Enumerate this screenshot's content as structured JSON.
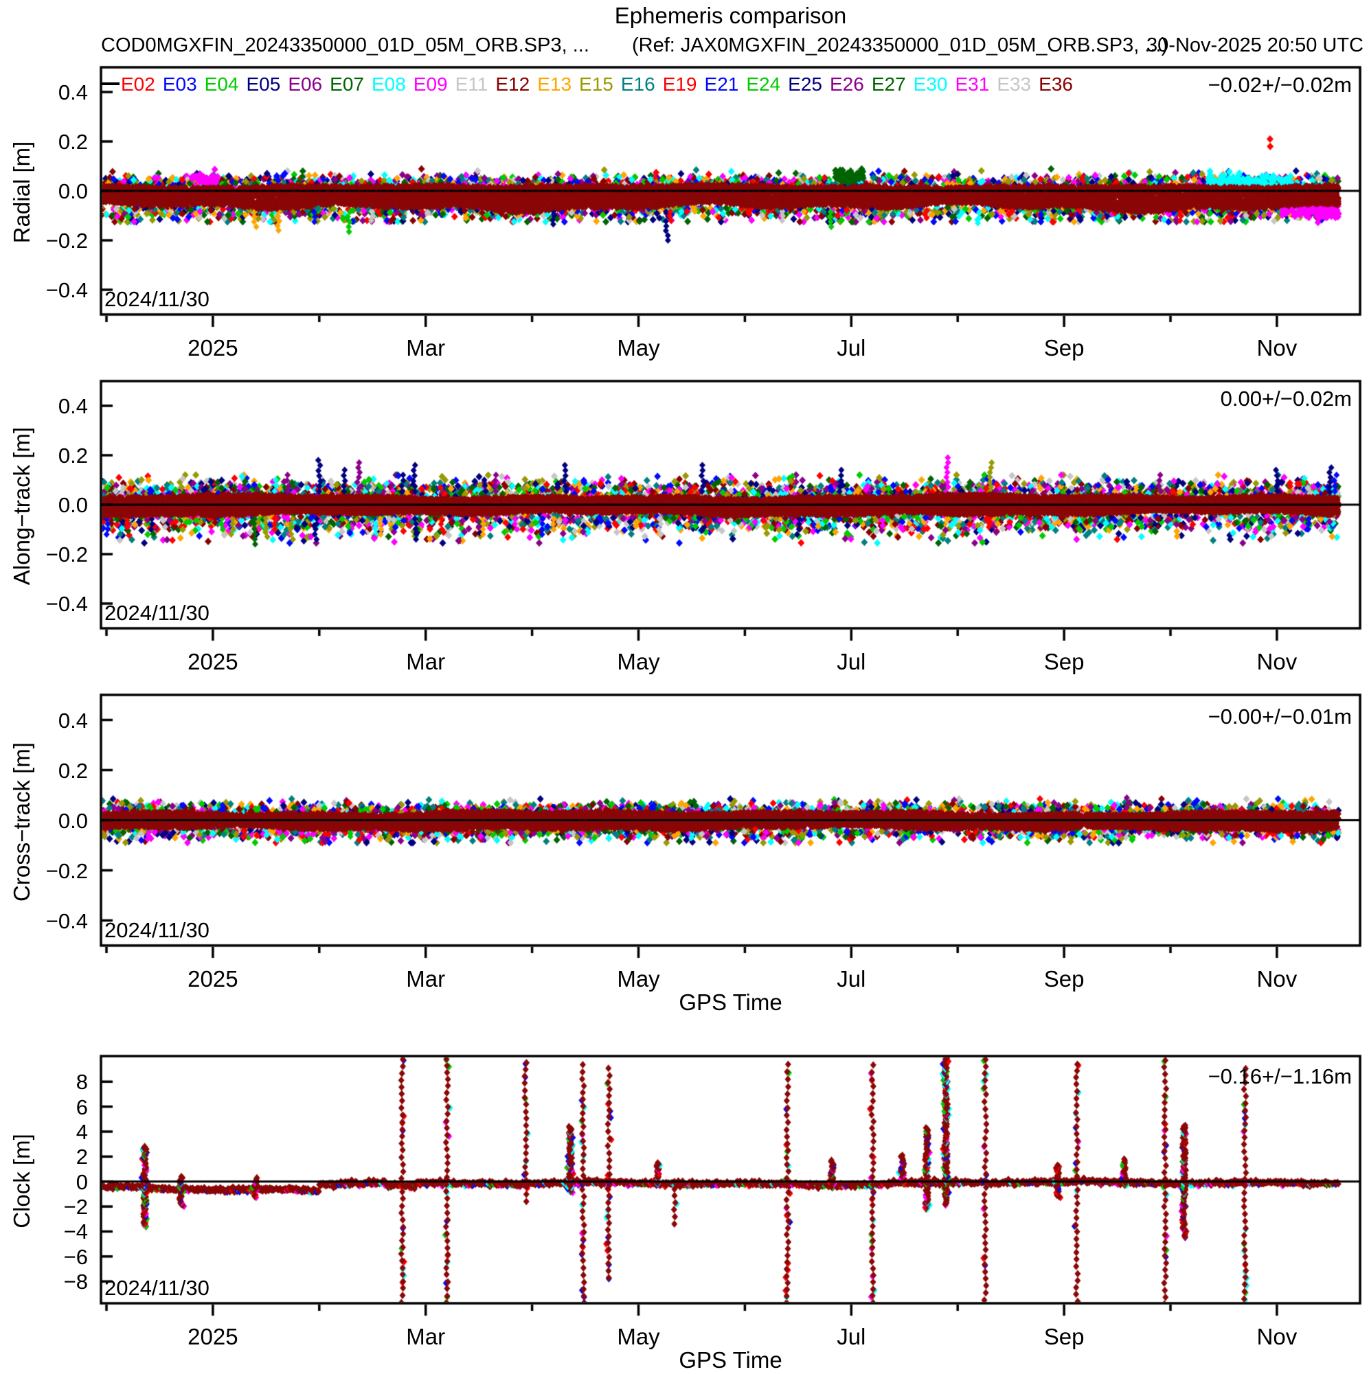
{
  "header": {
    "title": "Ephemeris comparison",
    "solution": "COD0MGXFIN_20243350000_01D_05M_ORB.SP3, ...",
    "reference": "(Ref: JAX0MGXFIN_20243350000_01D_05M_ORB.SP3, ...)",
    "timestamp": "30-Nov-2025 20:50 UTC"
  },
  "legend": {
    "satellites": [
      {
        "id": "E02",
        "color": "#ff0000"
      },
      {
        "id": "E03",
        "color": "#0008ff"
      },
      {
        "id": "E04",
        "color": "#00cc00"
      },
      {
        "id": "E05",
        "color": "#000080"
      },
      {
        "id": "E06",
        "color": "#8b008b"
      },
      {
        "id": "E07",
        "color": "#006400"
      },
      {
        "id": "E08",
        "color": "#00ffff"
      },
      {
        "id": "E09",
        "color": "#ff00ff"
      },
      {
        "id": "E11",
        "color": "#c6c6c6"
      },
      {
        "id": "E12",
        "color": "#8b0000"
      },
      {
        "id": "E13",
        "color": "#ffa500"
      },
      {
        "id": "E15",
        "color": "#999900"
      },
      {
        "id": "E16",
        "color": "#008080"
      },
      {
        "id": "E19",
        "color": "#ff0000"
      },
      {
        "id": "E21",
        "color": "#0008ff"
      },
      {
        "id": "E24",
        "color": "#00cc00"
      },
      {
        "id": "E25",
        "color": "#000080"
      },
      {
        "id": "E26",
        "color": "#8b008b"
      },
      {
        "id": "E27",
        "color": "#006400"
      },
      {
        "id": "E30",
        "color": "#00ffff"
      },
      {
        "id": "E31",
        "color": "#ff00ff"
      },
      {
        "id": "E33",
        "color": "#c6c6c6"
      },
      {
        "id": "E36",
        "color": "#8b0000"
      }
    ]
  },
  "colors": {
    "red": "#ff0000",
    "blue": "#0008ff",
    "green": "#00cc00",
    "navy": "#000080",
    "purple": "#8b008b",
    "darkgreen": "#006400",
    "cyan": "#00ffff",
    "magenta": "#ff00ff",
    "gray": "#c6c6c6",
    "darkred": "#8b0000",
    "orange": "#ffa500",
    "olive": "#999900",
    "teal": "#008080",
    "band": "#8b0707",
    "black": "#000000"
  },
  "axes": {
    "x": {
      "label": "GPS Time",
      "start_date": "2024/11/30",
      "months": [
        {
          "m": 0,
          "label": ""
        },
        {
          "m": 1,
          "label": "2025"
        },
        {
          "m": 2,
          "label": ""
        },
        {
          "m": 3,
          "label": "Mar"
        },
        {
          "m": 4,
          "label": ""
        },
        {
          "m": 5,
          "label": "May"
        },
        {
          "m": 6,
          "label": ""
        },
        {
          "m": 7,
          "label": "Jul"
        },
        {
          "m": 8,
          "label": ""
        },
        {
          "m": 9,
          "label": "Sep"
        },
        {
          "m": 10,
          "label": ""
        },
        {
          "m": 11,
          "label": "Nov"
        }
      ]
    }
  },
  "chart_data": [
    {
      "id": "radial",
      "type": "scatter",
      "ylabel": "Radial [m]",
      "units": "m",
      "ylim": [
        -0.5,
        0.5
      ],
      "yticks": [
        0.4,
        0.2,
        0.0,
        -0.2,
        -0.4
      ],
      "ytick_labels": [
        "0.4",
        "0.2",
        "0.0",
        "−0.2",
        "−0.4"
      ],
      "stat": "−0.02+/−0.02m",
      "date_label": "2024/11/30",
      "band": {
        "top": 0.02,
        "bottom": -0.065
      },
      "fringe": {
        "sd_up": 0.022,
        "sd_dn": 0.03,
        "max_up": 0.09,
        "max_dn": -0.125
      },
      "outlier_strings": [
        {
          "m": 1.4,
          "y": -0.145,
          "color": "orange"
        },
        {
          "m": 1.62,
          "y": -0.16,
          "color": "orange"
        },
        {
          "m": 1.95,
          "y": -0.125,
          "color": "blue"
        },
        {
          "m": 2.28,
          "y": -0.165,
          "color": "green"
        },
        {
          "m": 2.5,
          "y": -0.12,
          "color": "gray"
        },
        {
          "m": 4.2,
          "y": -0.135,
          "color": "navy"
        },
        {
          "m": 5.27,
          "y": -0.2,
          "color": "navy"
        },
        {
          "m": 5.3,
          "y": -0.12,
          "color": "red"
        },
        {
          "m": 6.35,
          "y": -0.12,
          "color": "gray"
        },
        {
          "m": 6.8,
          "y": -0.145,
          "color": "green"
        },
        {
          "m": 7.7,
          "y": -0.11,
          "color": "red"
        },
        {
          "m": 8.2,
          "y": -0.13,
          "color": "cyan"
        },
        {
          "m": 10.1,
          "y": -0.12,
          "color": "red"
        }
      ],
      "dots": [
        {
          "m": 10.93,
          "y": 0.21,
          "color": "red"
        },
        {
          "m": 10.93,
          "y": 0.18,
          "color": "red"
        }
      ],
      "clusters": [
        {
          "m0": 10.35,
          "m1": 11.15,
          "y": 0.035,
          "sd": 0.016,
          "color": "cyan",
          "n": 150
        },
        {
          "m0": 11.05,
          "m1": 11.58,
          "y": -0.08,
          "sd": 0.018,
          "color": "magenta",
          "n": 120
        },
        {
          "m0": 6.85,
          "m1": 7.12,
          "y": 0.06,
          "sd": 0.015,
          "color": "darkgreen",
          "n": 60
        },
        {
          "m0": 0.8,
          "m1": 1.05,
          "y": 0.05,
          "sd": 0.012,
          "color": "magenta",
          "n": 40
        }
      ]
    },
    {
      "id": "along",
      "type": "scatter",
      "ylabel": "Along−track [m]",
      "units": "m",
      "ylim": [
        -0.5,
        0.5
      ],
      "yticks": [
        0.4,
        0.2,
        0.0,
        -0.2,
        -0.4
      ],
      "ytick_labels": [
        "0.4",
        "0.2",
        "0.0",
        "−0.2",
        "−0.4"
      ],
      "stat": "0.00+/−0.02m",
      "date_label": "2024/11/30",
      "band": {
        "top": 0.032,
        "bottom": -0.036
      },
      "fringe": {
        "sd_up": 0.035,
        "sd_dn": 0.045,
        "max_up": 0.12,
        "max_dn": -0.155
      },
      "outlier_strings": [
        {
          "m": 0.01,
          "y": -0.12,
          "color": "blue"
        },
        {
          "m": 0.15,
          "y": 0.07,
          "color": "gray"
        },
        {
          "m": 0.2,
          "y": -0.09,
          "color": "red"
        },
        {
          "m": 0.42,
          "y": 0.055,
          "color": "blue"
        },
        {
          "m": 0.42,
          "y": -0.1,
          "color": "navy"
        },
        {
          "m": 0.93,
          "y": 0.065,
          "color": "navy"
        },
        {
          "m": 1.08,
          "y": -0.1,
          "color": "green"
        },
        {
          "m": 1.18,
          "y": -0.12,
          "color": "olive"
        },
        {
          "m": 1.4,
          "y": -0.16,
          "color": "darkgreen"
        },
        {
          "m": 1.5,
          "y": -0.13,
          "color": "olive"
        },
        {
          "m": 1.58,
          "y": -0.1,
          "color": "red"
        },
        {
          "m": 1.59,
          "y": 0.1,
          "color": "cyan"
        },
        {
          "m": 1.71,
          "y": 0.12,
          "color": "purple"
        },
        {
          "m": 1.74,
          "y": -0.14,
          "color": "olive"
        },
        {
          "m": 1.97,
          "y": -0.14,
          "color": "navy"
        },
        {
          "m": 2.0,
          "y": 0.18,
          "color": "navy"
        },
        {
          "m": 2.24,
          "y": 0.14,
          "color": "navy"
        },
        {
          "m": 2.37,
          "y": 0.17,
          "color": "purple"
        },
        {
          "m": 2.58,
          "y": -0.12,
          "color": "orange"
        },
        {
          "m": 2.78,
          "y": 0.12,
          "color": "navy"
        },
        {
          "m": 2.89,
          "y": 0.16,
          "color": "navy"
        },
        {
          "m": 2.91,
          "y": -0.14,
          "color": "navy"
        },
        {
          "m": 3.15,
          "y": -0.1,
          "color": "red"
        },
        {
          "m": 3.54,
          "y": -0.12,
          "color": "orange"
        },
        {
          "m": 3.56,
          "y": 0.1,
          "color": "navy"
        },
        {
          "m": 3.66,
          "y": 0.12,
          "color": "purple"
        },
        {
          "m": 3.85,
          "y": -0.1,
          "color": "magenta"
        },
        {
          "m": 4.1,
          "y": -0.12,
          "color": "blue"
        },
        {
          "m": 4.2,
          "y": -0.1,
          "color": "orange"
        },
        {
          "m": 4.31,
          "y": 0.16,
          "color": "navy"
        },
        {
          "m": 5.2,
          "y": -0.12,
          "color": "gray"
        },
        {
          "m": 5.6,
          "y": 0.16,
          "color": "navy"
        },
        {
          "m": 6.5,
          "y": -0.12,
          "color": "navy"
        },
        {
          "m": 6.9,
          "y": 0.14,
          "color": "navy"
        },
        {
          "m": 7.9,
          "y": 0.19,
          "color": "magenta"
        },
        {
          "m": 8.31,
          "y": 0.17,
          "color": "olive"
        },
        {
          "m": 8.3,
          "y": -0.09,
          "color": "red"
        },
        {
          "m": 9.9,
          "y": 0.12,
          "color": "purple"
        },
        {
          "m": 11.0,
          "y": 0.14,
          "color": "navy"
        },
        {
          "m": 11.3,
          "y": -0.1,
          "color": "blue"
        },
        {
          "m": 11.5,
          "y": 0.15,
          "color": "navy"
        },
        {
          "m": 11.55,
          "y": 0.12,
          "color": "blue"
        }
      ],
      "dots": [],
      "clusters": []
    },
    {
      "id": "cross",
      "type": "scatter",
      "ylabel": "Cross−track [m]",
      "units": "m",
      "ylim": [
        -0.5,
        0.5
      ],
      "yticks": [
        0.4,
        0.2,
        0.0,
        -0.2,
        -0.4
      ],
      "ytick_labels": [
        "0.4",
        "0.2",
        "0.0",
        "−0.2",
        "−0.4"
      ],
      "stat": "−0.00+/−0.01m",
      "date_label": "2024/11/30",
      "xlabel": "GPS Time",
      "band": {
        "top": 0.03,
        "bottom": -0.033
      },
      "fringe": {
        "sd_up": 0.02,
        "sd_dn": 0.025,
        "max_up": 0.085,
        "max_dn": -0.09
      },
      "outlier_strings": [
        {
          "m": 0.4,
          "y": -0.075,
          "color": "magenta"
        },
        {
          "m": 1.1,
          "y": 0.06,
          "color": "blue"
        },
        {
          "m": 2.3,
          "y": -0.065,
          "color": "green"
        },
        {
          "m": 5.5,
          "y": -0.07,
          "color": "cyan"
        },
        {
          "m": 7.3,
          "y": 0.06,
          "color": "magenta"
        },
        {
          "m": 9.6,
          "y": 0.09,
          "color": "purple"
        },
        {
          "m": 11.2,
          "y": 0.065,
          "color": "teal"
        }
      ],
      "dots": [],
      "clusters": []
    },
    {
      "id": "clock",
      "type": "scatter",
      "ylabel": "Clock [m]",
      "units": "m",
      "ylim": [
        -9.75,
        10.05
      ],
      "yticks": [
        8,
        6,
        4,
        2,
        0,
        -2,
        -4,
        -6,
        -8
      ],
      "ytick_labels": [
        "8",
        "6",
        "4",
        "2",
        "0",
        "−2",
        "−4",
        "−6",
        "−8"
      ],
      "stat": "−0.16+/−1.16m",
      "date_label": "2024/11/30",
      "xlabel": "GPS Time",
      "baseline_segments": [
        {
          "m0": -0.05,
          "m1": 2.0,
          "level": -0.55,
          "amp": 0.3
        },
        {
          "m0": 2.0,
          "m1": 2.62,
          "level": -0.22,
          "amp": 0.15
        },
        {
          "m0": 2.62,
          "m1": 2.9,
          "level": -0.1,
          "amp": 0.55
        },
        {
          "m0": 2.9,
          "m1": 11.58,
          "level": -0.12,
          "amp": 0.18
        }
      ],
      "spikes": [
        {
          "m": 0.36,
          "y1": -3.6,
          "y2": 2.9,
          "style": "dense"
        },
        {
          "m": 0.7,
          "y1": -1.9,
          "y2": 0.5,
          "style": "dense"
        },
        {
          "m": 1.4,
          "y1": -1.2,
          "y2": 0.3,
          "style": "dense"
        },
        {
          "m": 2.78,
          "y1": -9.7,
          "y2": 9.9,
          "style": "dotted"
        },
        {
          "m": 3.2,
          "y1": -9.7,
          "y2": 9.9,
          "style": "dotted"
        },
        {
          "m": 3.94,
          "y1": -1.6,
          "y2": 9.9,
          "style": "dotted"
        },
        {
          "m": 4.36,
          "y1": -0.8,
          "y2": 4.4,
          "style": "dense"
        },
        {
          "m": 4.48,
          "y1": -9.7,
          "y2": 9.9,
          "style": "dotted"
        },
        {
          "m": 4.72,
          "y1": -7.7,
          "y2": 9.3,
          "style": "dotted"
        },
        {
          "m": 5.18,
          "y1": -0.3,
          "y2": 1.6,
          "style": "dense"
        },
        {
          "m": 5.34,
          "y1": -3.4,
          "y2": 0.5,
          "style": "dotted"
        },
        {
          "m": 6.4,
          "y1": -9.7,
          "y2": 9.9,
          "style": "dotted"
        },
        {
          "m": 6.82,
          "y1": -0.4,
          "y2": 1.8,
          "style": "dense"
        },
        {
          "m": 7.2,
          "y1": -9.7,
          "y2": 9.9,
          "style": "dotted"
        },
        {
          "m": 7.48,
          "y1": 0.0,
          "y2": 2.2,
          "style": "dense"
        },
        {
          "m": 7.71,
          "y1": -2.2,
          "y2": 4.4,
          "style": "dense"
        },
        {
          "m": 7.89,
          "y1": -1.8,
          "y2": 9.9,
          "style": "dense"
        },
        {
          "m": 8.26,
          "y1": -9.5,
          "y2": 9.9,
          "style": "dotted"
        },
        {
          "m": 8.94,
          "y1": -1.2,
          "y2": 1.4,
          "style": "dense"
        },
        {
          "m": 9.12,
          "y1": -9.6,
          "y2": 9.9,
          "style": "dotted"
        },
        {
          "m": 9.57,
          "y1": -0.3,
          "y2": 1.9,
          "style": "dense"
        },
        {
          "m": 9.95,
          "y1": -9.8,
          "y2": 9.9,
          "style": "dotted"
        },
        {
          "m": 10.13,
          "y1": -4.4,
          "y2": 4.6,
          "style": "dense"
        },
        {
          "m": 10.7,
          "y1": -9.4,
          "y2": 9.4,
          "style": "dotted"
        }
      ]
    }
  ]
}
